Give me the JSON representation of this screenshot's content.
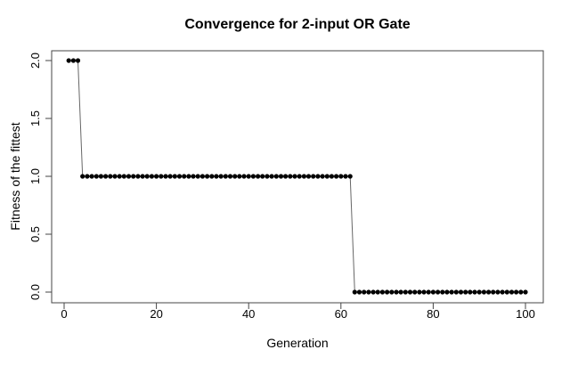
{
  "chart_data": {
    "type": "line",
    "style": "points-with-connecting-line (R plot type='b', filled dots)",
    "title": "Convergence for 2-input OR Gate",
    "xlabel": "Generation",
    "ylabel": "Fitness of the fittest",
    "xlim": [
      0,
      100
    ],
    "ylim": [
      0,
      2
    ],
    "x_ticks": [
      0,
      20,
      40,
      60,
      80,
      100
    ],
    "y_ticks": [
      "0.0",
      "0.5",
      "1.0",
      "1.5",
      "2.0"
    ],
    "y_tick_values": [
      0,
      0.5,
      1,
      1.5,
      2
    ],
    "grid": false,
    "legend": null,
    "x_start_generation": 1,
    "series": [
      {
        "name": "fitness-of-the-fittest",
        "values": [
          2,
          2,
          2,
          1,
          1,
          1,
          1,
          1,
          1,
          1,
          1,
          1,
          1,
          1,
          1,
          1,
          1,
          1,
          1,
          1,
          1,
          1,
          1,
          1,
          1,
          1,
          1,
          1,
          1,
          1,
          1,
          1,
          1,
          1,
          1,
          1,
          1,
          1,
          1,
          1,
          1,
          1,
          1,
          1,
          1,
          1,
          1,
          1,
          1,
          1,
          1,
          1,
          1,
          1,
          1,
          1,
          1,
          1,
          1,
          1,
          1,
          1,
          0,
          0,
          0,
          0,
          0,
          0,
          0,
          0,
          0,
          0,
          0,
          0,
          0,
          0,
          0,
          0,
          0,
          0,
          0,
          0,
          0,
          0,
          0,
          0,
          0,
          0,
          0,
          0,
          0,
          0,
          0,
          0,
          0,
          0,
          0,
          0,
          0,
          0
        ]
      }
    ],
    "segments_summary": [
      {
        "generations": "1-3",
        "fitness": 2
      },
      {
        "generations": "4-62",
        "fitness": 1
      },
      {
        "generations": "63-100",
        "fitness": 0
      }
    ],
    "point_color": "#000000",
    "line_color": "#666666",
    "axis_color": "#454545",
    "text_color": "#000000",
    "background_color": "#ffffff"
  }
}
